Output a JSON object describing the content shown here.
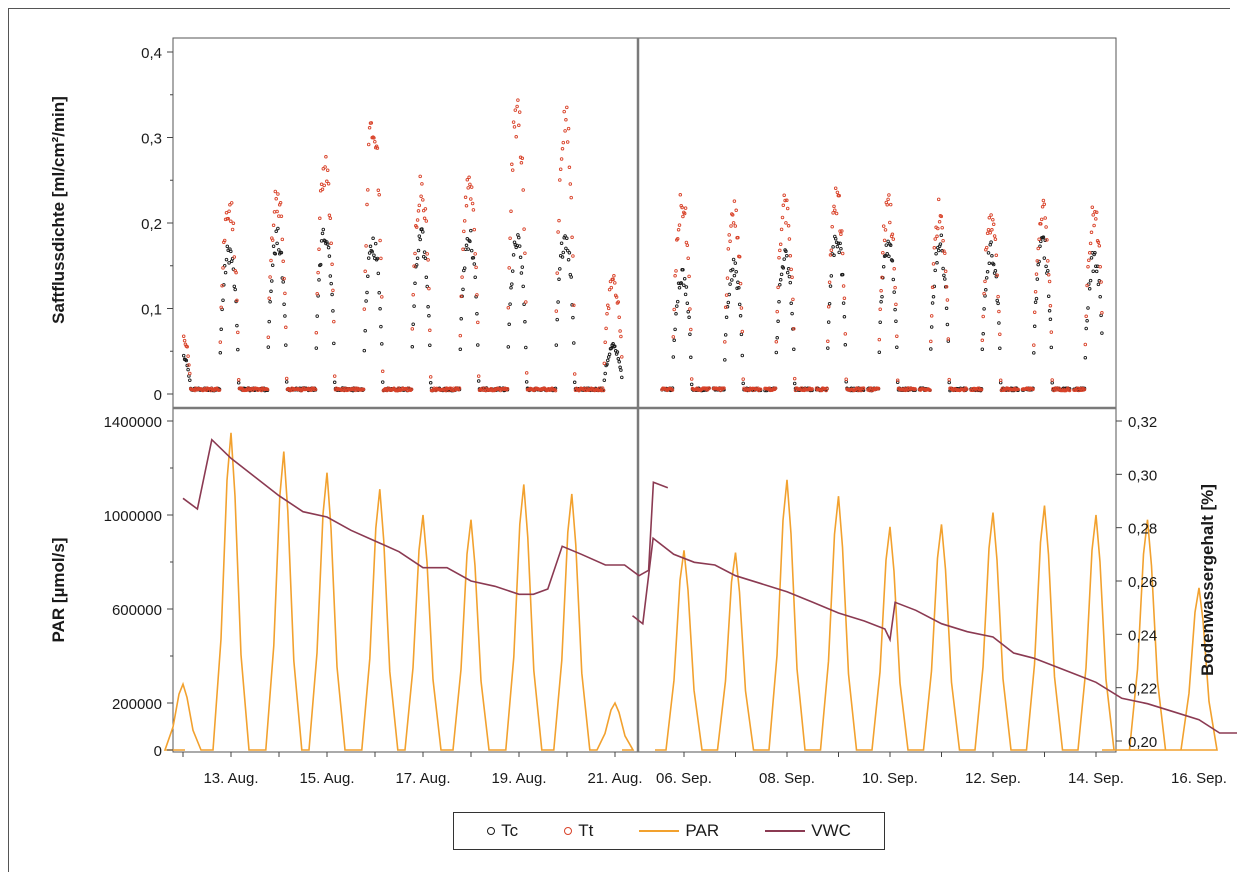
{
  "chart_data": [
    {
      "type": "scatter",
      "panel": "top",
      "ylabel": "Saftflussdichte [ml/cm²/min]",
      "ylim": [
        0,
        0.4
      ],
      "yticks": [
        "0",
        "0,1",
        "0,2",
        "0,3",
        "0,4"
      ],
      "segments": [
        {
          "period": "August",
          "days": [
            12,
            13,
            14,
            15,
            16,
            17,
            18,
            19,
            20,
            21
          ],
          "series": [
            {
              "name": "Tc",
              "daily_peak": [
                0.05,
                0.18,
                0.195,
                0.205,
                0.19,
                0.195,
                0.2,
                0.19,
                0.2,
                0.06
              ]
            },
            {
              "name": "Tt",
              "daily_peak": [
                0.08,
                0.24,
                0.25,
                0.285,
                0.35,
                0.265,
                0.27,
                0.355,
                0.345,
                0.14
              ]
            }
          ]
        },
        {
          "period": "September",
          "days": [
            6,
            7,
            8,
            9,
            10,
            11,
            12,
            13,
            14,
            15,
            16
          ],
          "series": [
            {
              "name": "Tc",
              "daily_peak": [
                0.15,
                0.16,
                0.17,
                0.2,
                0.19,
                0.19,
                0.18,
                0.19,
                0.17,
                0.16,
                0.115
              ]
            },
            {
              "name": "Tt",
              "daily_peak": [
                0.24,
                0.23,
                0.235,
                0.245,
                0.235,
                0.23,
                0.22,
                0.23,
                0.225,
                0.21,
                0.185
              ]
            }
          ]
        }
      ],
      "colors": {
        "Tc": "#1a1a1a",
        "Tt": "#d9432a"
      }
    },
    {
      "type": "line",
      "panel": "bottom",
      "ylabel": "PAR [µmol/s]",
      "y2label": "Bodenwassergehalt [%]",
      "ylim": [
        0,
        1400000
      ],
      "y2lim": [
        0.2,
        0.32
      ],
      "yticks": [
        "0",
        "200000",
        "600000",
        "1000000",
        "1400000"
      ],
      "y2ticks": [
        "0,20",
        "0,22",
        "0,24",
        "0,26",
        "0,28",
        "0,30",
        "0,32"
      ],
      "xticks_aug": [
        "13. Aug.",
        "15. Aug.",
        "17. Aug.",
        "19. Aug.",
        "21. Aug."
      ],
      "xticks_sep": [
        "06. Sep.",
        "08. Sep.",
        "10. Sep.",
        "12. Sep.",
        "14. Sep.",
        "16. Sep."
      ],
      "segments": [
        {
          "period": "August",
          "series": [
            {
              "name": "PAR",
              "daily_peak": [
                280000,
                1350000,
                1270000,
                1180000,
                1110000,
                1000000,
                980000,
                1130000,
                1090000,
                200000
              ]
            },
            {
              "name": "VWC",
              "points": [
                [
                  12.0,
                  0.291
                ],
                [
                  12.3,
                  0.287
                ],
                [
                  12.6,
                  0.313
                ],
                [
                  13.0,
                  0.306
                ],
                [
                  13.5,
                  0.299
                ],
                [
                  14.0,
                  0.292
                ],
                [
                  14.5,
                  0.286
                ],
                [
                  15.0,
                  0.284
                ],
                [
                  15.5,
                  0.279
                ],
                [
                  16.0,
                  0.275
                ],
                [
                  16.5,
                  0.271
                ],
                [
                  17.0,
                  0.265
                ],
                [
                  17.5,
                  0.265
                ],
                [
                  18.0,
                  0.26
                ],
                [
                  18.5,
                  0.258
                ],
                [
                  19.0,
                  0.255
                ],
                [
                  19.3,
                  0.255
                ],
                [
                  19.6,
                  0.257
                ],
                [
                  19.9,
                  0.273
                ],
                [
                  20.3,
                  0.27
                ],
                [
                  20.8,
                  0.266
                ],
                [
                  21.2,
                  0.266
                ],
                [
                  21.5,
                  0.262
                ],
                [
                  21.7,
                  0.264
                ],
                [
                  21.8,
                  0.297
                ],
                [
                  22.1,
                  0.295
                ]
              ]
            }
          ]
        },
        {
          "period": "September",
          "series": [
            {
              "name": "PAR",
              "daily_peak": [
                850000,
                840000,
                1150000,
                1080000,
                950000,
                960000,
                1010000,
                1040000,
                1000000,
                980000,
                690000
              ]
            },
            {
              "name": "VWC",
              "points": [
                [
                  5.0,
                  0.247
                ],
                [
                  5.2,
                  0.244
                ],
                [
                  5.4,
                  0.276
                ],
                [
                  5.8,
                  0.27
                ],
                [
                  6.2,
                  0.267
                ],
                [
                  6.6,
                  0.266
                ],
                [
                  7.0,
                  0.262
                ],
                [
                  7.5,
                  0.259
                ],
                [
                  8.0,
                  0.256
                ],
                [
                  8.5,
                  0.252
                ],
                [
                  9.0,
                  0.248
                ],
                [
                  9.5,
                  0.245
                ],
                [
                  9.9,
                  0.242
                ],
                [
                  10.0,
                  0.238
                ],
                [
                  10.1,
                  0.252
                ],
                [
                  10.5,
                  0.249
                ],
                [
                  11.0,
                  0.244
                ],
                [
                  11.5,
                  0.241
                ],
                [
                  12.0,
                  0.239
                ],
                [
                  12.4,
                  0.233
                ],
                [
                  12.8,
                  0.231
                ],
                [
                  13.2,
                  0.228
                ],
                [
                  13.6,
                  0.225
                ],
                [
                  14.0,
                  0.222
                ],
                [
                  14.5,
                  0.216
                ],
                [
                  15.0,
                  0.214
                ],
                [
                  15.5,
                  0.211
                ],
                [
                  16.0,
                  0.208
                ],
                [
                  16.4,
                  0.203
                ],
                [
                  16.8,
                  0.203
                ],
                [
                  17.1,
                  0.202
                ],
                [
                  17.2,
                  0.225
                ],
                [
                  17.3,
                  0.243
                ]
              ]
            }
          ]
        }
      ],
      "colors": {
        "PAR": "#f2a12e",
        "VWC": "#8b3a52"
      }
    }
  ],
  "legend": {
    "items": [
      {
        "label": "Tc",
        "kind": "circle",
        "color": "#1a1a1a"
      },
      {
        "label": "Tt",
        "kind": "circle",
        "color": "#d9432a"
      },
      {
        "label": "PAR",
        "kind": "line",
        "color": "#f2a12e"
      },
      {
        "label": "VWC",
        "kind": "line",
        "color": "#8b3a52"
      }
    ]
  }
}
